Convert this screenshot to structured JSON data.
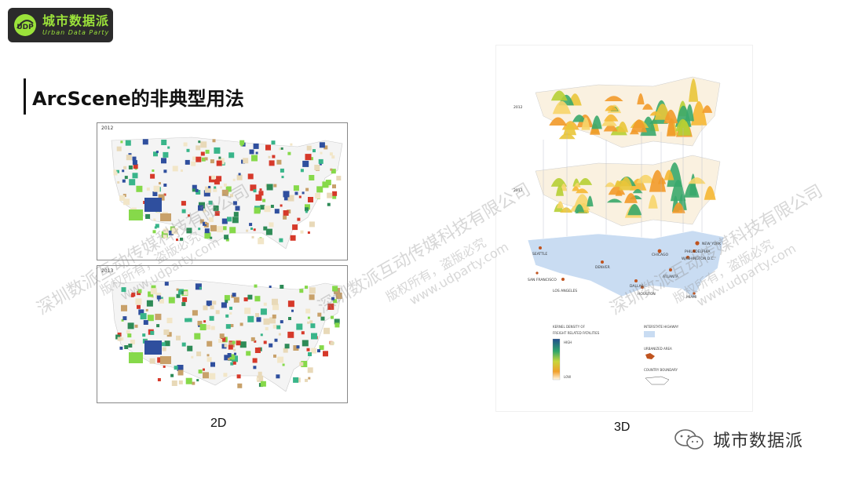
{
  "logo": {
    "cn": "城市数据派",
    "en": "Urban Data Party",
    "mark_text": "UDP",
    "accent_color": "#9be23a"
  },
  "title": "ArcScene的非典型用法",
  "maps_2d": {
    "top_year": "2012",
    "bottom_year": "2013",
    "caption": "2D"
  },
  "maps_3d": {
    "year_top": "2012",
    "year_bottom": "2017",
    "caption": "3D",
    "cities": {
      "seattle": "SEATTLE",
      "denver": "DENVER",
      "san_francisco": "SAN FRANCISCO",
      "los_angeles": "LOS ANGELES",
      "dallas": "DALLAS",
      "houston": "HOUSTON",
      "chicago": "CHICAGO",
      "atlanta": "ATLANTA",
      "miami": "MIAMI",
      "new_york": "NEW YORK",
      "philadelphia": "PHILADELPHIA",
      "washington": "WASHINGTON D.C."
    },
    "legend": {
      "kd_title_1": "KERNEL DENSITY OF",
      "kd_title_2": "FREIGHT RELATED FATALITIES",
      "high": "HIGH",
      "low": "LOW",
      "highway": "INTERSTATE HIGHWAY",
      "urban": "URBANIZED AREA",
      "boundary": "COUNTRY BOUNDARY"
    }
  },
  "watermarks": {
    "line1": "深圳数派互动传媒科技有限公司",
    "line2": "版权所有，盗版必究",
    "url": "www.udparty.com"
  },
  "footer": {
    "brand": "城市数据派",
    "icon": "wechat-icon"
  }
}
